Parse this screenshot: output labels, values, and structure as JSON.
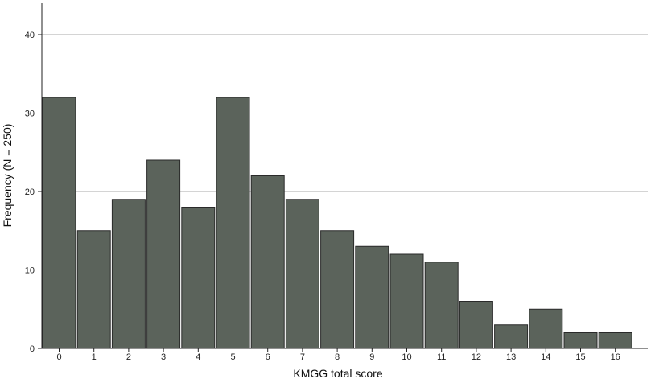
{
  "chart_data": {
    "type": "bar",
    "title": "",
    "xlabel": "KMGG total score",
    "ylabel": "Frequency (N = 250)",
    "categories": [
      "0",
      "1",
      "2",
      "3",
      "4",
      "5",
      "6",
      "7",
      "8",
      "9",
      "10",
      "11",
      "12",
      "13",
      "14",
      "15",
      "16"
    ],
    "values": [
      32,
      15,
      19,
      24,
      18,
      32,
      22,
      19,
      15,
      13,
      12,
      11,
      6,
      3,
      5,
      2,
      2
    ],
    "ylim": [
      0,
      44
    ],
    "yticks": [
      "0",
      "10",
      "20",
      "30",
      "40"
    ],
    "grid": true,
    "legend": "none",
    "colors": {
      "bar": "#5b635b",
      "bar_edge": "#2a2a2a",
      "grid": "#a9a9a9"
    }
  }
}
